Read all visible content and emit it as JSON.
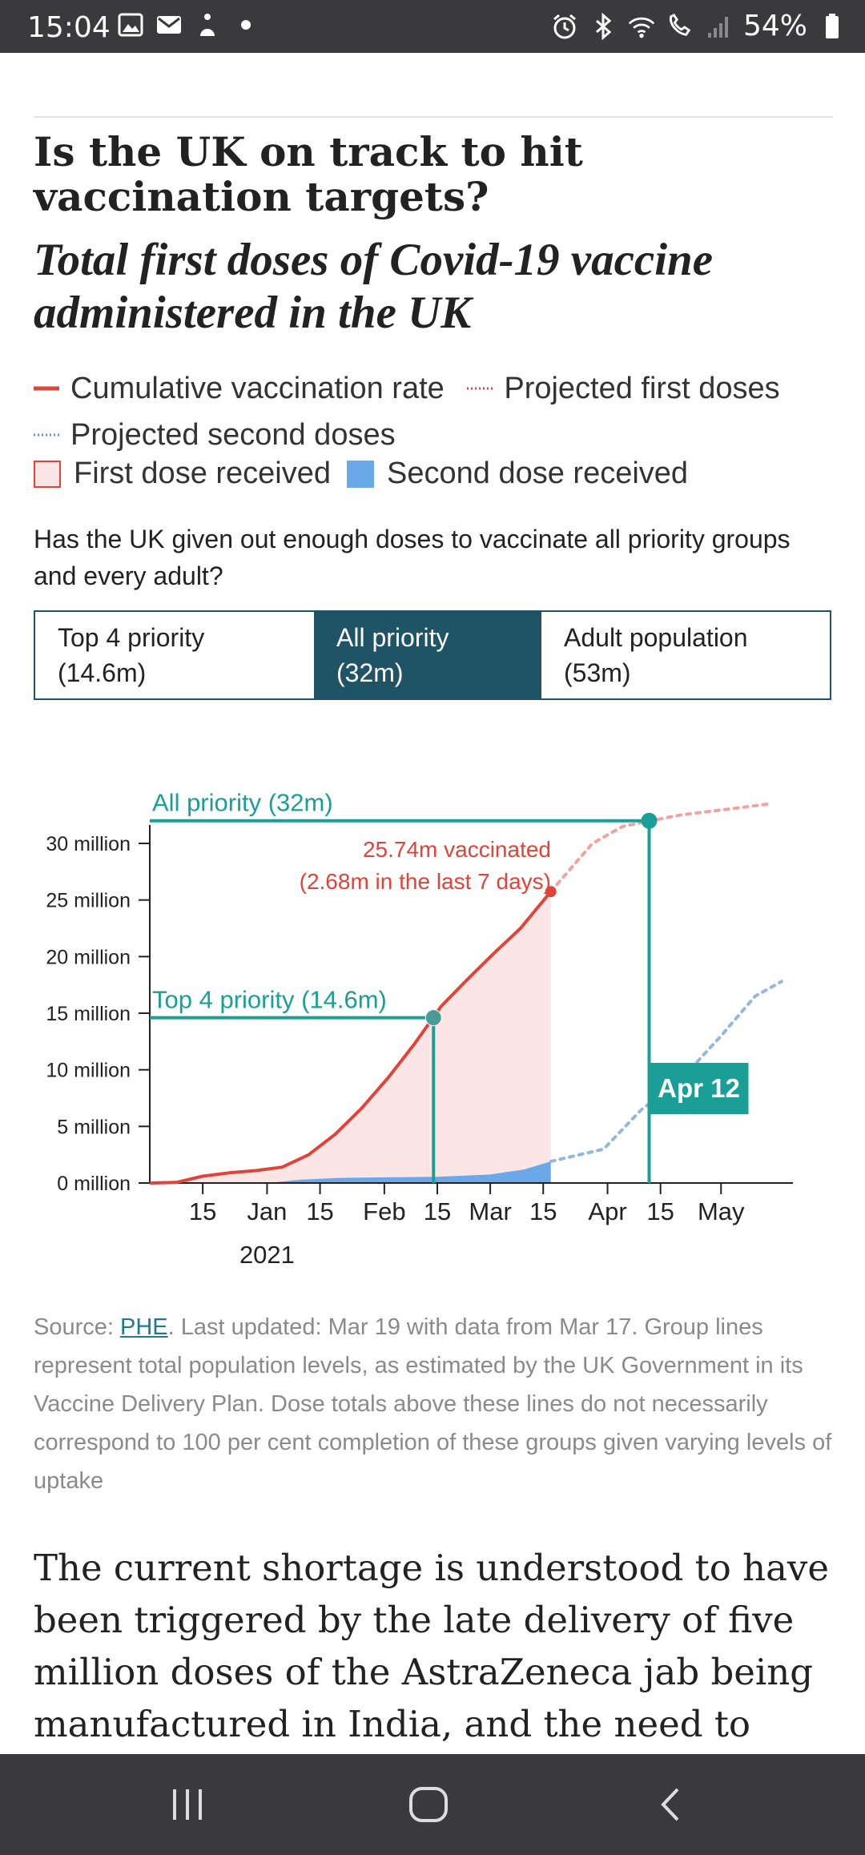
{
  "status_bar": {
    "time": "15:04",
    "battery": "54%",
    "icons_left": [
      "image-icon",
      "mail-icon",
      "accessibility-icon",
      "dot-icon"
    ],
    "icons_right": [
      "alarm-icon",
      "bluetooth-icon",
      "wifi-icon",
      "wifi-calling-icon",
      "signal-icon",
      "battery-icon"
    ]
  },
  "article": {
    "title": "Is the UK on track to hit vaccination targets?",
    "subtitle": "Total first doses of Covid-19 vaccine administered in the UK",
    "legend": {
      "cumulative": "Cumulative vaccination rate",
      "projected_first": "Projected first doses",
      "projected_second": "Projected second doses",
      "first_dose": "First dose received",
      "second_dose": "Second dose received"
    },
    "question": "Has the UK given out enough doses to vaccinate all priority groups and every adult?",
    "toggle": {
      "options": [
        {
          "line1": "Top 4 priority",
          "line2": "(14.6m)"
        },
        {
          "line1": "All priority",
          "line2": "(32m)"
        },
        {
          "line1": "Adult population",
          "line2": "(53m)"
        }
      ],
      "selected": "All priority"
    },
    "source_prefix": "Source: ",
    "source_link": "PHE",
    "source_text": ". Last updated: Mar 19 with data from Mar 17. Group lines represent total population levels, as estimated by the UK Government in its Vaccine Delivery Plan. Dose totals above these lines do not necessarily correspond to 100 per cent completion of these groups given varying levels of uptake",
    "body": "The current shortage is understood to have been triggered by the late delivery of five million doses of the AstraZeneca jab being manufactured in India, and the need to retest a"
  },
  "chart_data": {
    "type": "area",
    "y_tick_labels": [
      "0 million",
      "5 million",
      "10 million",
      "15 million",
      "20 million",
      "25 million",
      "30 million"
    ],
    "y_ticks": [
      0,
      5,
      10,
      15,
      20,
      25,
      30
    ],
    "ylim": [
      0,
      32
    ],
    "x_range": [
      "2020-12-01",
      "2021-05-20"
    ],
    "x_ticks": [
      {
        "date": "2020-12-15",
        "label": "15"
      },
      {
        "date": "2021-01-01",
        "label": "Jan"
      },
      {
        "date": "2021-01-15",
        "label": "15"
      },
      {
        "date": "2021-02-01",
        "label": "Feb"
      },
      {
        "date": "2021-02-15",
        "label": "15"
      },
      {
        "date": "2021-03-01",
        "label": "Mar"
      },
      {
        "date": "2021-03-15",
        "label": "15"
      },
      {
        "date": "2021-04-01",
        "label": "Apr"
      },
      {
        "date": "2021-04-15",
        "label": "15"
      },
      {
        "date": "2021-05-01",
        "label": "May"
      }
    ],
    "year_label": "2021",
    "series": [
      {
        "name": "Cumulative vaccination rate",
        "color": "#e0433a",
        "style": "solid",
        "points": [
          [
            "2020-12-01",
            0
          ],
          [
            "2020-12-08",
            0.05
          ],
          [
            "2020-12-15",
            0.6
          ],
          [
            "2020-12-22",
            0.9
          ],
          [
            "2020-12-29",
            1.1
          ],
          [
            "2021-01-05",
            1.4
          ],
          [
            "2021-01-12",
            2.5
          ],
          [
            "2021-01-19",
            4.3
          ],
          [
            "2021-01-26",
            6.6
          ],
          [
            "2021-02-02",
            9.3
          ],
          [
            "2021-02-09",
            12.3
          ],
          [
            "2021-02-16",
            15.6
          ],
          [
            "2021-02-23",
            18.0
          ],
          [
            "2021-03-02",
            20.3
          ],
          [
            "2021-03-09",
            22.5
          ],
          [
            "2021-03-17",
            25.74
          ]
        ]
      },
      {
        "name": "Second dose received",
        "color": "#6aa8e8",
        "style": "area",
        "points": [
          [
            "2021-01-01",
            0
          ],
          [
            "2021-01-10",
            0.3
          ],
          [
            "2021-01-20",
            0.45
          ],
          [
            "2021-02-01",
            0.5
          ],
          [
            "2021-02-15",
            0.55
          ],
          [
            "2021-03-01",
            0.75
          ],
          [
            "2021-03-10",
            1.2
          ],
          [
            "2021-03-17",
            1.9
          ]
        ]
      },
      {
        "name": "Projected first doses",
        "color": "#f0a3a0",
        "style": "dotted",
        "points": [
          [
            "2021-03-17",
            25.74
          ],
          [
            "2021-03-28",
            30.0
          ],
          [
            "2021-04-05",
            31.5
          ],
          [
            "2021-04-20",
            32.5
          ],
          [
            "2021-05-07",
            33.2
          ],
          [
            "2021-05-14",
            33.5
          ]
        ]
      },
      {
        "name": "Projected second doses",
        "color": "#95b7dc",
        "style": "dotted",
        "points": [
          [
            "2021-03-17",
            1.9
          ],
          [
            "2021-03-31",
            3.0
          ],
          [
            "2021-04-10",
            6.5
          ],
          [
            "2021-04-20",
            9.0
          ],
          [
            "2021-05-01",
            13.0
          ],
          [
            "2021-05-10",
            16.5
          ],
          [
            "2021-05-17",
            17.8
          ]
        ]
      }
    ],
    "annotations": {
      "all_priority": {
        "label": "All priority (32m)",
        "value": 32,
        "date": "2021-04-12",
        "date_label": "Apr 12"
      },
      "top4": {
        "label": "Top 4 priority (14.6m)",
        "value": 14.6,
        "date": "2021-02-14"
      },
      "current_line1": "25.74m vaccinated",
      "current_line2": "(2.68m in the last 7 days)"
    },
    "colors": {
      "teal": "#1a9e96",
      "red": "#e0433a",
      "pink_fill": "#fbe6e5",
      "blue_fill": "#6aa8e8"
    }
  },
  "navbar": {
    "icons": [
      "recent-apps-icon",
      "home-icon",
      "back-icon"
    ]
  }
}
